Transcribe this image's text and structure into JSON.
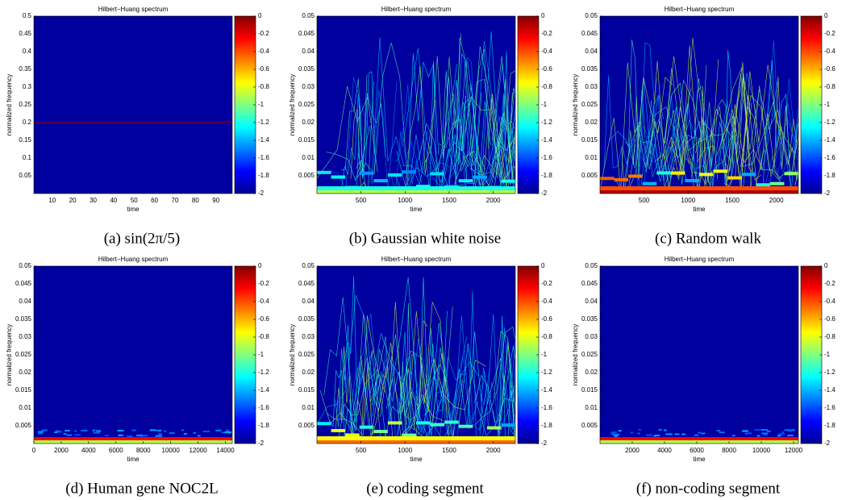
{
  "chart_data": [
    {
      "type": "heatmap",
      "title": "Hilbert−Huang spectrum",
      "xlabel": "time",
      "ylabel": "normalized frequency",
      "caption": "(a) sin(2π/5)",
      "xlim": [
        1,
        98
      ],
      "xticks": [
        10,
        20,
        30,
        40,
        50,
        60,
        70,
        80,
        90
      ],
      "ylim": [
        0,
        0.5
      ],
      "yticks": [
        0.05,
        0.1,
        0.15,
        0.2,
        0.25,
        0.3,
        0.35,
        0.4,
        0.45,
        0.5
      ],
      "clim": [
        -2,
        0
      ],
      "cticks": [
        -2,
        -1.8,
        -1.6,
        -1.4,
        -1.2,
        -1,
        -0.8,
        -0.6,
        -0.4,
        -0.2,
        0
      ],
      "colormap": "jet"
    },
    {
      "type": "heatmap",
      "title": "Hilbert−Huang spectrum",
      "xlabel": "time",
      "ylabel": "normalized frequency",
      "caption": "(b) Gaussian white noise",
      "xlim": [
        1,
        2250
      ],
      "xticks": [
        500,
        1000,
        1500,
        2000
      ],
      "ylim": [
        0,
        0.05
      ],
      "yticks": [
        0.005,
        0.01,
        0.015,
        0.02,
        0.025,
        0.03,
        0.035,
        0.04,
        0.045,
        0.05
      ],
      "clim": [
        -2,
        0
      ],
      "cticks": [
        -2,
        -1.8,
        -1.6,
        -1.4,
        -1.2,
        -1,
        -0.8,
        -0.6,
        -0.4,
        -0.2,
        0
      ],
      "colormap": "jet"
    },
    {
      "type": "heatmap",
      "title": "Hilbert−Huang spectrum",
      "xlabel": "time",
      "ylabel": "normalized frequency",
      "caption": "(c) Random walk",
      "xlim": [
        1,
        2250
      ],
      "xticks": [
        500,
        1000,
        1500,
        2000
      ],
      "ylim": [
        0,
        0.05
      ],
      "yticks": [
        0.005,
        0.01,
        0.015,
        0.02,
        0.025,
        0.03,
        0.035,
        0.04,
        0.045,
        0.05
      ],
      "clim": [
        -2,
        0
      ],
      "cticks": [
        -2,
        -1.8,
        -1.6,
        -1.4,
        -1.2,
        -1,
        -0.8,
        -0.6,
        -0.4,
        -0.2,
        0
      ],
      "colormap": "jet"
    },
    {
      "type": "heatmap",
      "title": "Hilbert−Huang spectrum",
      "xlabel": "time",
      "ylabel": "normalized frequency",
      "caption": "(d) Human gene NOC2L",
      "xlim": [
        0,
        14500
      ],
      "xticks": [
        0,
        2000,
        4000,
        6000,
        8000,
        10000,
        12000,
        14000
      ],
      "ylim": [
        0,
        0.05
      ],
      "yticks": [
        0.005,
        0.01,
        0.015,
        0.02,
        0.025,
        0.03,
        0.035,
        0.04,
        0.045,
        0.05
      ],
      "clim": [
        -2,
        0
      ],
      "cticks": [
        -2,
        -1.8,
        -1.6,
        -1.4,
        -1.2,
        -1,
        -0.8,
        -0.6,
        -0.4,
        -0.2,
        0
      ],
      "colormap": "jet"
    },
    {
      "type": "heatmap",
      "title": "Hilbert−Huang spectrum",
      "xlabel": "time",
      "ylabel": "normalized frequency",
      "caption": "(e) coding segment",
      "xlim": [
        1,
        2250
      ],
      "xticks": [
        500,
        1000,
        1500,
        2000
      ],
      "ylim": [
        0,
        0.05
      ],
      "yticks": [
        0.005,
        0.01,
        0.015,
        0.02,
        0.025,
        0.03,
        0.035,
        0.04,
        0.045,
        0.05
      ],
      "clim": [
        -2,
        0
      ],
      "cticks": [
        -2,
        -1.8,
        -1.6,
        -1.4,
        -1.2,
        -1,
        -0.8,
        -0.6,
        -0.4,
        -0.2,
        0
      ],
      "colormap": "jet"
    },
    {
      "type": "heatmap",
      "title": "Hilbert−Huang spectrum",
      "xlabel": "time",
      "ylabel": "normalized frequency",
      "caption": "(f) non-coding segment",
      "xlim": [
        1,
        12300
      ],
      "xticks": [
        2000,
        4000,
        6000,
        8000,
        10000,
        12000
      ],
      "ylim": [
        0,
        0.05
      ],
      "yticks": [
        0.005,
        0.01,
        0.015,
        0.02,
        0.025,
        0.03,
        0.035,
        0.04,
        0.045,
        0.05
      ],
      "clim": [
        -2,
        0
      ],
      "cticks": [
        -2,
        -1.8,
        -1.6,
        -1.4,
        -1.2,
        -1,
        -0.8,
        -0.6,
        -0.4,
        -0.2,
        0
      ],
      "colormap": "jet"
    }
  ]
}
